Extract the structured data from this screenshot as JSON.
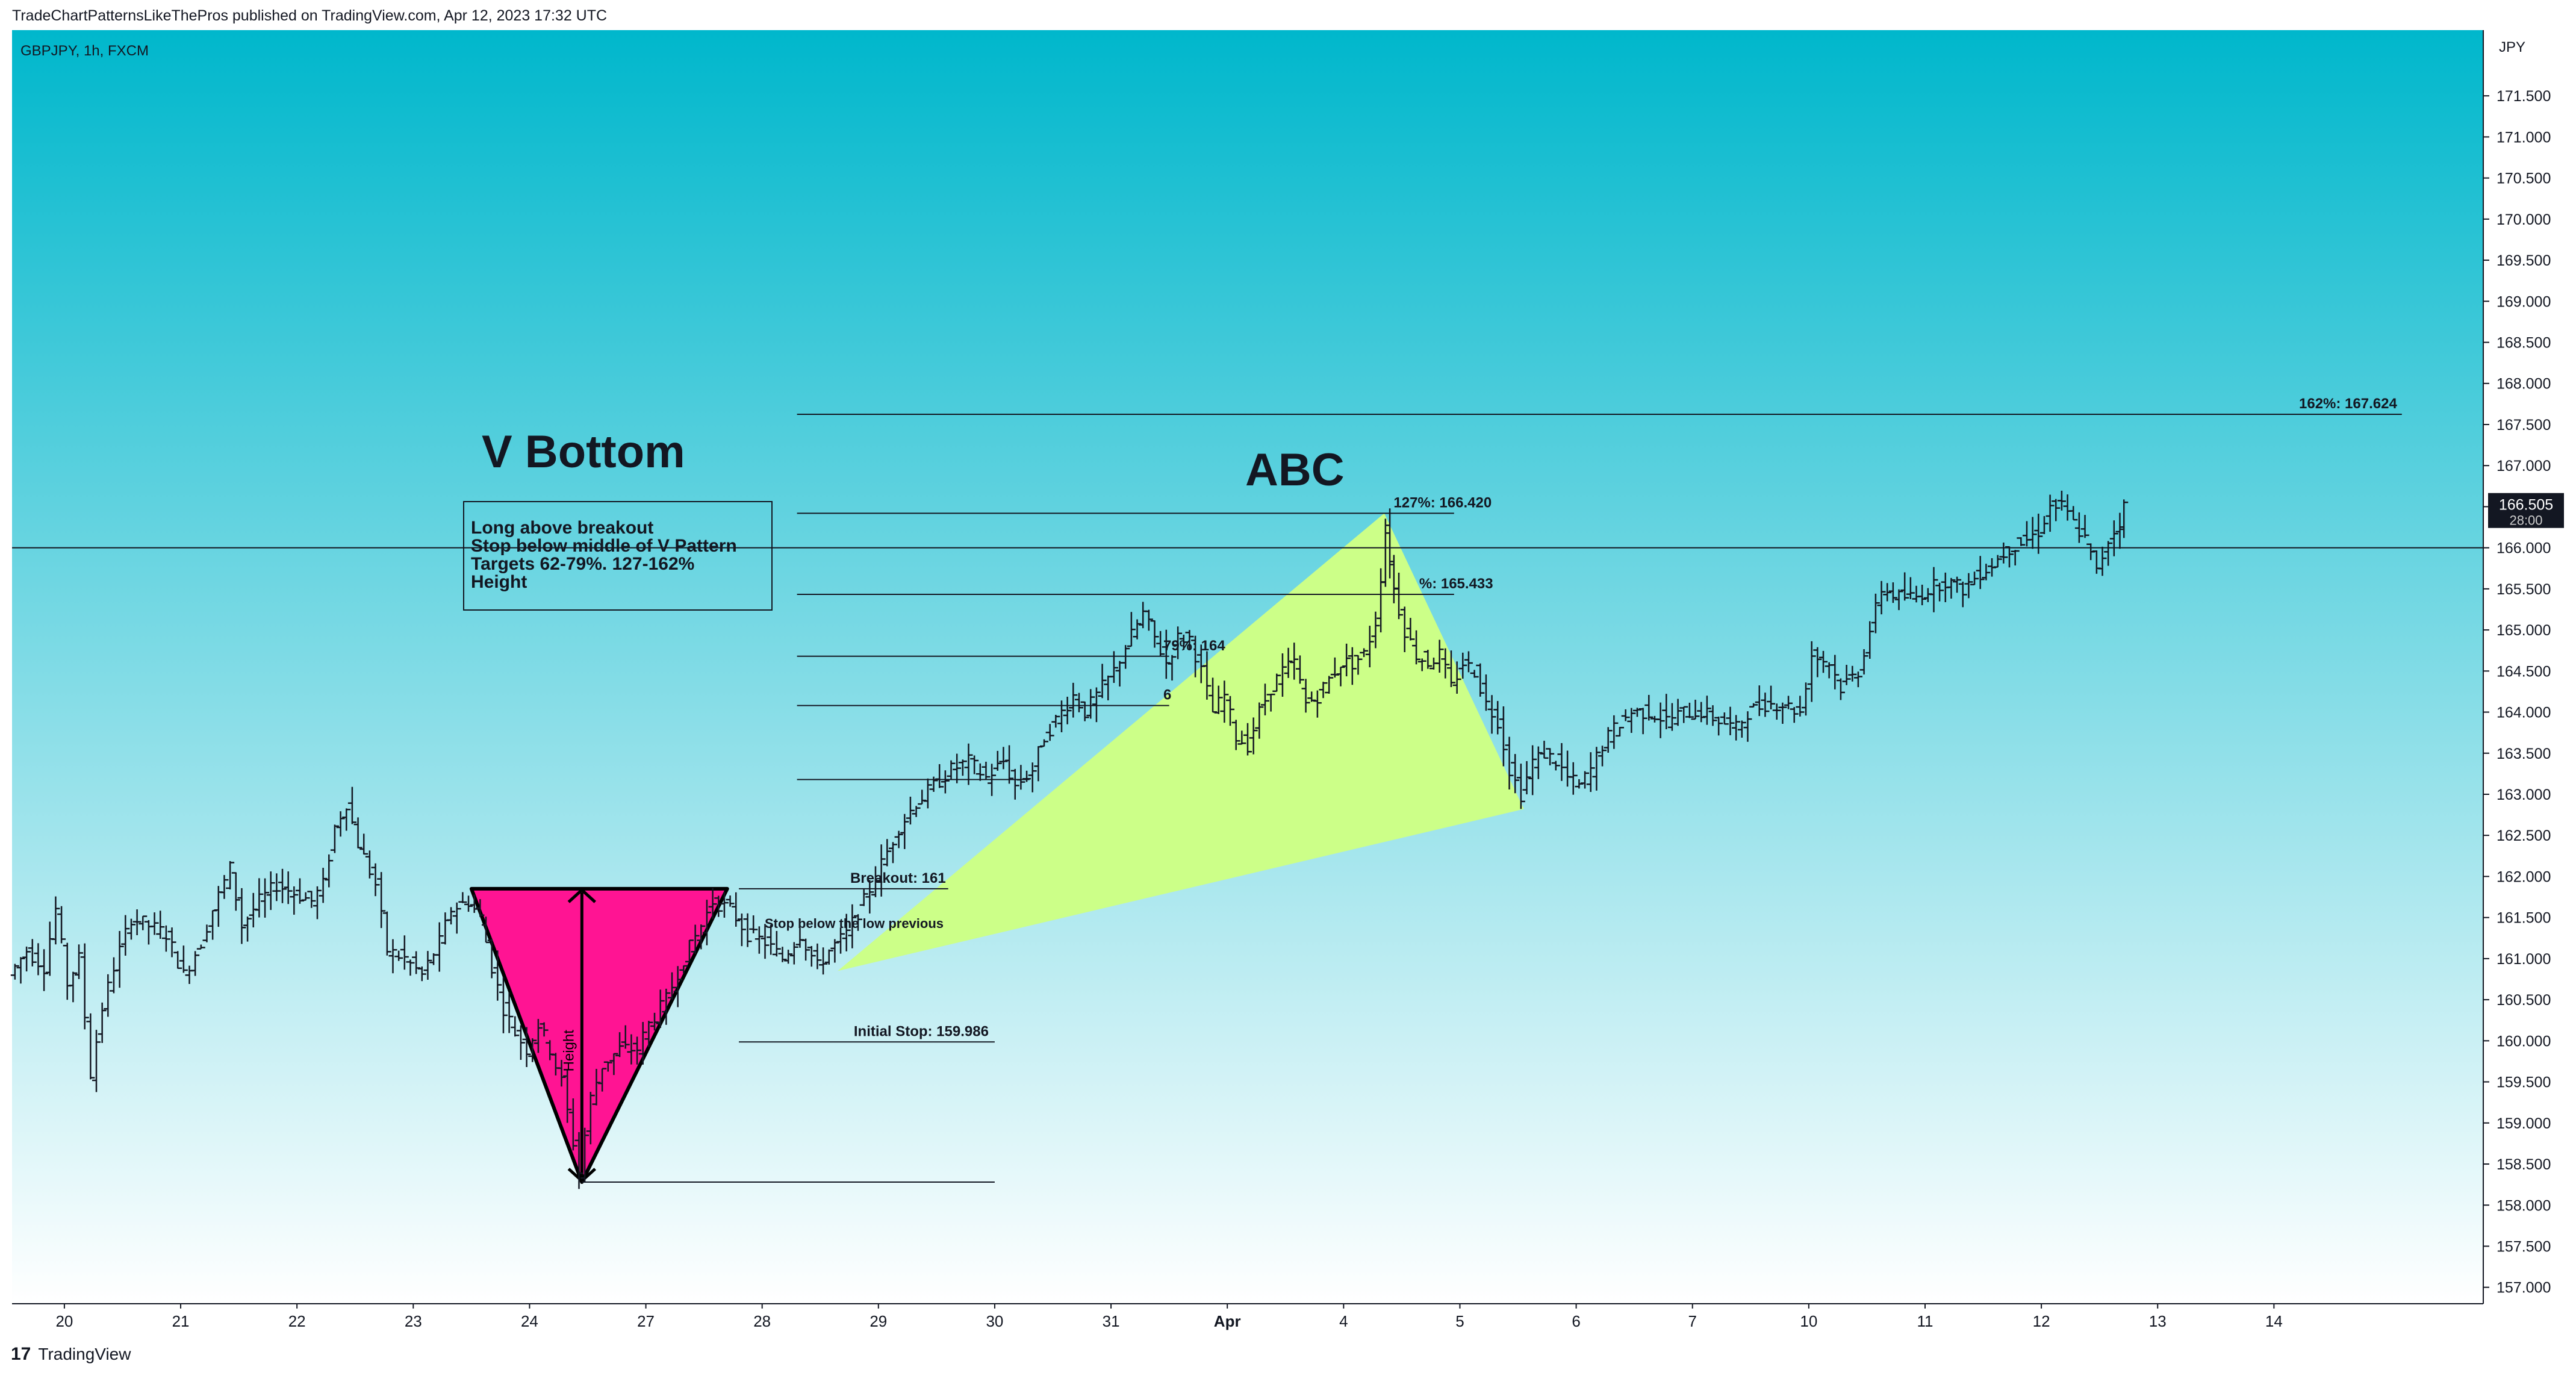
{
  "header": "TradeChartPatternsLikeThePros published on TradingView.com, Apr 12, 2023 17:32 UTC",
  "footer": {
    "logo": "17",
    "brand": "TradingView"
  },
  "chart_data": {
    "type": "candlestick",
    "symbol_label": "GBPJPY, 1h, FXCM",
    "currency": "JPY",
    "gradient": {
      "top": "#00b7cc",
      "bottom": "#ffffff"
    },
    "ylim": [
      156.8,
      172.3
    ],
    "yticks": [
      "157.000",
      "157.500",
      "158.000",
      "158.500",
      "159.000",
      "159.500",
      "160.000",
      "160.500",
      "161.000",
      "161.500",
      "162.000",
      "162.500",
      "163.000",
      "163.500",
      "164.000",
      "164.500",
      "165.000",
      "165.500",
      "166.000",
      "166.500",
      "167.000",
      "167.500",
      "168.000",
      "168.500",
      "169.000",
      "169.500",
      "170.000",
      "170.500",
      "171.000",
      "171.500"
    ],
    "xlim": [
      19.55,
      40.8
    ],
    "xticks": [
      {
        "label": "20",
        "x": 20
      },
      {
        "label": "21",
        "x": 21
      },
      {
        "label": "22",
        "x": 22
      },
      {
        "label": "23",
        "x": 23
      },
      {
        "label": "24",
        "x": 24
      },
      {
        "label": "27",
        "x": 25
      },
      {
        "label": "28",
        "x": 26
      },
      {
        "label": "29",
        "x": 27
      },
      {
        "label": "30",
        "x": 28
      },
      {
        "label": "31",
        "x": 29
      },
      {
        "label": "Apr",
        "x": 30
      },
      {
        "label": "4",
        "x": 31
      },
      {
        "label": "5",
        "x": 32
      },
      {
        "label": "6",
        "x": 33
      },
      {
        "label": "7",
        "x": 34
      },
      {
        "label": "10",
        "x": 35
      },
      {
        "label": "11",
        "x": 36
      },
      {
        "label": "12",
        "x": 37
      },
      {
        "label": "13",
        "x": 38
      },
      {
        "label": "14",
        "x": 39
      }
    ],
    "last_price": {
      "value": 166.505,
      "label": "166.505",
      "countdown": "28:00"
    },
    "price_path": [
      [
        19.55,
        160.8
      ],
      [
        19.7,
        161.1
      ],
      [
        19.85,
        160.9
      ],
      [
        19.95,
        161.6
      ],
      [
        20.05,
        160.7
      ],
      [
        20.15,
        161.0
      ],
      [
        20.25,
        159.6
      ],
      [
        20.35,
        160.4
      ],
      [
        20.45,
        160.9
      ],
      [
        20.6,
        161.5
      ],
      [
        20.75,
        161.4
      ],
      [
        20.9,
        161.3
      ],
      [
        21.05,
        160.8
      ],
      [
        21.2,
        161.2
      ],
      [
        21.3,
        161.6
      ],
      [
        21.45,
        162.1
      ],
      [
        21.55,
        161.4
      ],
      [
        21.7,
        161.7
      ],
      [
        21.85,
        161.9
      ],
      [
        22.0,
        161.8
      ],
      [
        22.15,
        161.7
      ],
      [
        22.25,
        161.9
      ],
      [
        22.35,
        162.6
      ],
      [
        22.45,
        162.9
      ],
      [
        22.55,
        162.4
      ],
      [
        22.7,
        161.9
      ],
      [
        22.8,
        161.1
      ],
      [
        22.95,
        161.0
      ],
      [
        23.1,
        160.8
      ],
      [
        23.25,
        161.2
      ],
      [
        23.35,
        161.6
      ],
      [
        23.5,
        161.7
      ],
      [
        23.6,
        161.5
      ],
      [
        23.7,
        160.9
      ],
      [
        23.8,
        160.4
      ],
      [
        23.9,
        160.1
      ],
      [
        24.0,
        159.9
      ],
      [
        24.1,
        160.2
      ],
      [
        24.2,
        159.9
      ],
      [
        24.3,
        159.5
      ],
      [
        24.45,
        158.4
      ],
      [
        24.55,
        159.3
      ],
      [
        24.65,
        159.7
      ],
      [
        24.8,
        159.9
      ],
      [
        24.95,
        159.9
      ],
      [
        25.05,
        160.2
      ],
      [
        25.2,
        160.5
      ],
      [
        25.35,
        161.0
      ],
      [
        25.5,
        161.4
      ],
      [
        25.6,
        161.7
      ],
      [
        25.75,
        161.6
      ],
      [
        25.9,
        161.3
      ],
      [
        26.05,
        161.2
      ],
      [
        26.2,
        161.0
      ],
      [
        26.35,
        161.3
      ],
      [
        26.5,
        160.9
      ],
      [
        26.6,
        161.1
      ],
      [
        26.75,
        161.3
      ],
      [
        26.9,
        161.7
      ],
      [
        27.0,
        162.0
      ],
      [
        27.1,
        162.3
      ],
      [
        27.2,
        162.6
      ],
      [
        27.35,
        162.9
      ],
      [
        27.5,
        163.1
      ],
      [
        27.65,
        163.3
      ],
      [
        27.8,
        163.4
      ],
      [
        27.95,
        163.2
      ],
      [
        28.1,
        163.4
      ],
      [
        28.2,
        163.1
      ],
      [
        28.35,
        163.3
      ],
      [
        28.45,
        163.7
      ],
      [
        28.55,
        163.9
      ],
      [
        28.7,
        164.2
      ],
      [
        28.8,
        164.0
      ],
      [
        28.95,
        164.3
      ],
      [
        29.05,
        164.5
      ],
      [
        29.15,
        164.8
      ],
      [
        29.3,
        165.2
      ],
      [
        29.4,
        164.9
      ],
      [
        29.5,
        164.6
      ],
      [
        29.6,
        164.9
      ],
      [
        29.7,
        164.9
      ],
      [
        29.8,
        164.5
      ],
      [
        29.9,
        164.0
      ],
      [
        30.0,
        164.2
      ],
      [
        30.1,
        163.7
      ],
      [
        30.2,
        163.6
      ],
      [
        30.3,
        164.0
      ],
      [
        30.4,
        164.3
      ],
      [
        30.5,
        164.5
      ],
      [
        30.6,
        164.6
      ],
      [
        30.7,
        164.1
      ],
      [
        30.8,
        164.2
      ],
      [
        30.9,
        164.4
      ],
      [
        31.0,
        164.6
      ],
      [
        31.1,
        164.6
      ],
      [
        31.2,
        164.7
      ],
      [
        31.3,
        165.1
      ],
      [
        31.38,
        166.2
      ],
      [
        31.45,
        165.5
      ],
      [
        31.55,
        165.0
      ],
      [
        31.65,
        164.7
      ],
      [
        31.75,
        164.6
      ],
      [
        31.85,
        164.7
      ],
      [
        31.95,
        164.3
      ],
      [
        32.05,
        164.6
      ],
      [
        32.15,
        164.5
      ],
      [
        32.25,
        164.1
      ],
      [
        32.35,
        163.9
      ],
      [
        32.45,
        163.3
      ],
      [
        32.55,
        163.0
      ],
      [
        32.65,
        163.4
      ],
      [
        32.75,
        163.5
      ],
      [
        32.85,
        163.4
      ],
      [
        32.95,
        163.2
      ],
      [
        33.05,
        163.1
      ],
      [
        33.15,
        163.3
      ],
      [
        33.25,
        163.6
      ],
      [
        33.35,
        163.8
      ],
      [
        33.5,
        164.0
      ],
      [
        33.65,
        164.0
      ],
      [
        33.8,
        163.9
      ],
      [
        33.95,
        164.0
      ],
      [
        34.1,
        164.0
      ],
      [
        34.25,
        163.9
      ],
      [
        34.4,
        163.8
      ],
      [
        34.5,
        164.0
      ],
      [
        34.65,
        164.1
      ],
      [
        34.8,
        164.1
      ],
      [
        34.95,
        164.0
      ],
      [
        35.05,
        164.7
      ],
      [
        35.2,
        164.6
      ],
      [
        35.3,
        164.3
      ],
      [
        35.45,
        164.5
      ],
      [
        35.55,
        165.0
      ],
      [
        35.65,
        165.5
      ],
      [
        35.8,
        165.4
      ],
      [
        35.95,
        165.4
      ],
      [
        36.05,
        165.5
      ],
      [
        36.2,
        165.6
      ],
      [
        36.35,
        165.5
      ],
      [
        36.5,
        165.7
      ],
      [
        36.6,
        165.8
      ],
      [
        36.75,
        166.0
      ],
      [
        36.9,
        166.1
      ],
      [
        37.0,
        166.2
      ],
      [
        37.1,
        166.5
      ],
      [
        37.2,
        166.5
      ],
      [
        37.3,
        166.3
      ],
      [
        37.4,
        166.1
      ],
      [
        37.5,
        165.7
      ],
      [
        37.6,
        166.1
      ],
      [
        37.7,
        166.3
      ],
      [
        37.72,
        166.5
      ]
    ],
    "hlines": [
      {
        "y": 167.624,
        "x1": 26.3,
        "x2": 40.1,
        "label": "162%: 167.624"
      },
      {
        "y": 166.42,
        "x1": 26.3,
        "x2": 31.95,
        "label": "127%: 166.420"
      },
      {
        "y": 165.433,
        "x1": 26.3,
        "x2": 31.95,
        "label": "%: 165.433"
      },
      {
        "y": 164.68,
        "x1": 26.3,
        "x2": 29.5,
        "label": "79%: 164"
      },
      {
        "y": 164.08,
        "x1": 26.3,
        "x2": 29.5,
        "label": "6"
      },
      {
        "y": 163.18,
        "x1": 26.3,
        "x2": 28.3,
        "label": ""
      },
      {
        "y": 161.85,
        "x1": 25.8,
        "x2": 27.6,
        "label": "Breakout: 161"
      },
      {
        "y": 159.986,
        "x1": 25.8,
        "x2": 28.0,
        "label": "Initial Stop: 159.986"
      },
      {
        "y": 158.28,
        "x1": 24.45,
        "x2": 28.0,
        "label": ""
      }
    ],
    "annotations": {
      "v_bottom_title": "V Bottom",
      "abc_title": "ABC",
      "note_lines": [
        "Long above breakout",
        "Stop below middle of V Pattern",
        "Targets 62-79%. 127-162%",
        "Height"
      ],
      "height_label": "Height",
      "stop_text": "Stop below the low previous"
    },
    "shapes": {
      "v_triangle": {
        "color": "#ff1493",
        "points": [
          [
            23.5,
            161.85
          ],
          [
            25.7,
            161.85
          ],
          [
            24.45,
            158.28
          ]
        ]
      },
      "abc_triangle": {
        "color": "#ccff88",
        "points": [
          [
            26.65,
            160.85
          ],
          [
            31.35,
            166.42
          ],
          [
            32.55,
            162.82
          ]
        ]
      }
    }
  }
}
